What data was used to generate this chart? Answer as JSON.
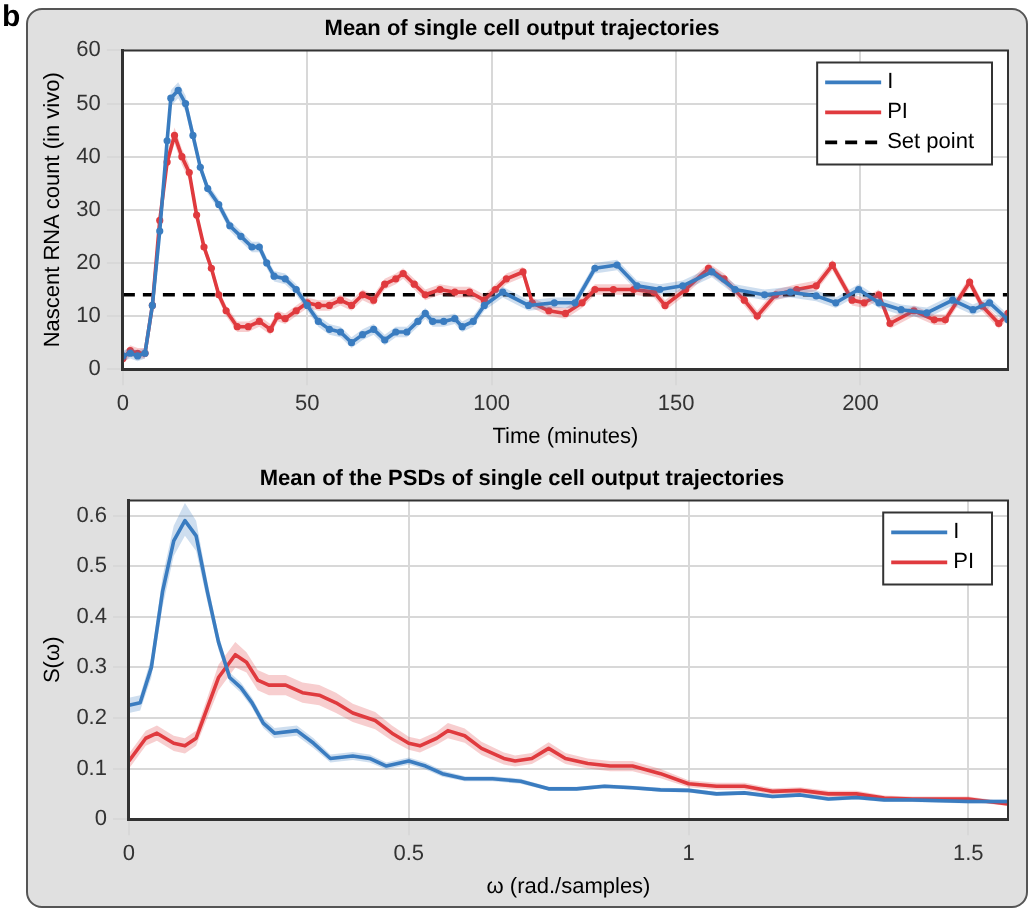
{
  "chart_data": [
    {
      "type": "line",
      "title": "Mean of single cell output trajectories",
      "xlabel": "Time (minutes)",
      "ylabel": "Nascent RNA count (in vivo)",
      "annotations": [
        "b"
      ],
      "xlim": [
        0,
        240
      ],
      "xticks": [
        0,
        50,
        100,
        150,
        200
      ],
      "ylim": [
        0,
        60
      ],
      "yticks": [
        0,
        10,
        20,
        30,
        40,
        50,
        60
      ],
      "grid": true,
      "legend": "top right",
      "marker": "circle",
      "line_style": "solid",
      "ref_lines": [
        {
          "axis": "y",
          "value": 14,
          "label": "Set point",
          "color": "#000000",
          "line_style": "dashed"
        }
      ],
      "series": [
        {
          "name": "I",
          "color": "#3a7dc0",
          "x": [
            0,
            2,
            4,
            6,
            8,
            10,
            12,
            13,
            15,
            17,
            19,
            21,
            23,
            26,
            29,
            32,
            35,
            37,
            39,
            41,
            44,
            47,
            50,
            53,
            56,
            59,
            62,
            65,
            68,
            71,
            74,
            77,
            80,
            82,
            84,
            87,
            90,
            92,
            95,
            98,
            103,
            110,
            117,
            122.6,
            128,
            134,
            139.4,
            145.6,
            151.8,
            159.7,
            166,
            174,
            181,
            188,
            193.3,
            199.5,
            205,
            211,
            218,
            225,
            230.5,
            235,
            240
          ],
          "values": [
            2.5,
            3,
            2.5,
            3,
            12,
            26,
            43,
            51,
            52.5,
            50,
            44,
            38,
            34,
            31,
            27,
            25,
            23,
            23,
            20,
            17.5,
            17,
            15,
            12,
            9,
            7.5,
            7,
            5,
            6.5,
            7.5,
            5.5,
            7,
            7,
            9,
            10.5,
            9,
            9,
            9.5,
            8,
            9,
            12,
            14.5,
            12,
            12.5,
            12.5,
            19,
            19.6,
            15.7,
            15,
            15.7,
            18.3,
            15,
            14,
            14.5,
            13.8,
            12.5,
            15,
            12.5,
            11.2,
            10.6,
            13,
            11.2,
            12.5,
            9.3
          ],
          "lower": [
            1.5,
            2,
            1.5,
            2,
            11,
            25,
            41.5,
            49.5,
            51,
            48.5,
            42.5,
            37,
            33,
            30,
            26,
            24,
            22,
            22,
            19,
            16.5,
            16,
            14,
            11,
            8,
            6.5,
            6,
            4,
            5.5,
            6.5,
            4.5,
            6,
            6,
            8,
            9.5,
            8,
            8,
            8.5,
            7,
            8,
            11,
            13.5,
            11,
            11.5,
            11.5,
            18,
            18.6,
            14.7,
            14,
            14.7,
            17.3,
            14,
            13,
            13.5,
            12.8,
            11.5,
            14,
            11.5,
            10.2,
            9.6,
            12,
            10.2,
            11.5,
            8.3
          ],
          "upper": [
            3.5,
            4,
            3.5,
            4,
            13,
            27,
            44.5,
            52.5,
            54,
            51.5,
            45.5,
            39,
            35,
            32,
            28,
            26,
            24,
            24,
            21,
            18.5,
            18,
            16,
            13,
            10,
            8.5,
            8,
            6,
            7.5,
            8.5,
            6.5,
            8,
            8,
            10,
            11.5,
            10,
            10,
            10.5,
            9,
            10,
            13,
            15.5,
            13,
            13.5,
            13.5,
            20,
            20.6,
            16.7,
            16,
            16.7,
            19.3,
            16,
            15,
            15.5,
            14.8,
            13.5,
            16,
            13.5,
            12.2,
            11.6,
            14,
            12.2,
            13.5,
            10.3
          ]
        },
        {
          "name": "PI",
          "color": "#e03a3e",
          "x": [
            0,
            2,
            4,
            6,
            8,
            10,
            12,
            14,
            16,
            18,
            20,
            22,
            24,
            26,
            28,
            31,
            34,
            37,
            40,
            42,
            44,
            47,
            50,
            53,
            56,
            59,
            62,
            65,
            68,
            71,
            74,
            76,
            79,
            82,
            86,
            90,
            94,
            98,
            101,
            104,
            108.5,
            111,
            115.5,
            120,
            124.5,
            128,
            133,
            138.5,
            144,
            147,
            152.6,
            158.8,
            163,
            168.5,
            172,
            177,
            182.7,
            188,
            192.4,
            197.7,
            201,
            205,
            208,
            214.5,
            220,
            223,
            229.6,
            233,
            237.5,
            240
          ],
          "values": [
            2,
            3.5,
            3,
            3,
            12,
            28,
            39,
            44,
            40,
            37,
            29,
            23,
            19,
            14,
            11,
            8,
            8,
            9,
            7.5,
            10,
            9.5,
            11,
            12.5,
            12,
            12,
            13,
            12,
            14,
            13,
            16,
            17,
            18,
            16,
            14,
            15,
            14.5,
            14.5,
            13,
            15,
            17,
            18.3,
            12.5,
            11,
            10.5,
            12.5,
            15,
            15,
            15,
            14.5,
            12,
            15,
            19,
            17,
            13,
            10,
            14,
            15,
            15.7,
            19.6,
            13,
            12.5,
            14,
            8.6,
            11,
            9.3,
            9.3,
            16.4,
            11.9,
            8.6,
            10.5
          ],
          "lower": [
            1,
            2.5,
            2,
            2,
            11,
            26.5,
            37.5,
            42.5,
            38.5,
            35.5,
            28,
            22,
            18,
            13,
            10,
            7,
            7,
            8,
            6.5,
            9,
            8.5,
            10,
            11.5,
            11,
            11,
            12,
            11,
            13,
            12,
            15,
            16,
            17,
            15,
            13,
            14,
            13.5,
            13.5,
            12,
            14,
            16,
            17.3,
            11.5,
            10,
            9.5,
            11.5,
            14,
            14,
            14,
            13.5,
            11,
            14,
            18,
            16,
            12,
            9,
            13,
            14,
            14.7,
            18.6,
            12,
            11.5,
            13,
            7.6,
            10,
            8.3,
            8.3,
            15.4,
            10.9,
            7.6,
            9.5
          ],
          "upper": [
            3,
            4.5,
            4,
            4,
            13,
            29.5,
            40.5,
            45.5,
            41.5,
            38.5,
            30,
            24,
            20,
            15,
            12,
            9,
            9,
            10,
            8.5,
            11,
            10.5,
            12,
            13.5,
            13,
            13,
            14,
            13,
            15,
            14,
            17,
            18,
            19,
            17,
            15,
            16,
            15.5,
            15.5,
            14,
            16,
            18,
            19.3,
            13.5,
            12,
            11.5,
            13.5,
            16,
            16,
            16,
            15.5,
            13,
            16,
            20,
            18,
            14,
            11,
            15,
            16,
            16.7,
            20.6,
            14,
            13.5,
            15,
            9.6,
            12,
            10.3,
            10.3,
            17.4,
            12.9,
            9.6,
            11.5
          ]
        }
      ]
    },
    {
      "type": "line",
      "title": "Mean of the PSDs of single cell output trajectories",
      "xlabel": "ω (rad./samples)",
      "ylabel": "S(ω)",
      "xlim": [
        0,
        1.571
      ],
      "xticks": [
        0,
        0.5,
        1,
        1.5
      ],
      "ylim": [
        0,
        0.63
      ],
      "yticks": [
        0,
        0.1,
        0.2,
        0.3,
        0.4,
        0.5,
        0.6
      ],
      "grid": true,
      "legend": "top right",
      "line_style": "solid",
      "series": [
        {
          "name": "I",
          "color": "#3a7dc0",
          "x": [
            0,
            0.02,
            0.04,
            0.06,
            0.08,
            0.1,
            0.12,
            0.14,
            0.16,
            0.18,
            0.2,
            0.22,
            0.24,
            0.26,
            0.3,
            0.33,
            0.36,
            0.4,
            0.43,
            0.46,
            0.5,
            0.53,
            0.56,
            0.6,
            0.65,
            0.7,
            0.75,
            0.8,
            0.85,
            0.9,
            0.95,
            1,
            1.05,
            1.1,
            1.15,
            1.2,
            1.25,
            1.3,
            1.35,
            1.4,
            1.5,
            1.571
          ],
          "values": [
            0.225,
            0.23,
            0.3,
            0.45,
            0.55,
            0.59,
            0.56,
            0.45,
            0.35,
            0.28,
            0.26,
            0.23,
            0.19,
            0.17,
            0.175,
            0.15,
            0.12,
            0.125,
            0.12,
            0.105,
            0.115,
            0.105,
            0.09,
            0.08,
            0.08,
            0.075,
            0.06,
            0.06,
            0.065,
            0.062,
            0.058,
            0.057,
            0.05,
            0.052,
            0.045,
            0.048,
            0.04,
            0.043,
            0.038,
            0.038,
            0.035,
            0.035
          ],
          "lower": [
            0.21,
            0.215,
            0.28,
            0.42,
            0.52,
            0.56,
            0.53,
            0.43,
            0.335,
            0.27,
            0.25,
            0.22,
            0.18,
            0.16,
            0.165,
            0.14,
            0.112,
            0.117,
            0.112,
            0.098,
            0.108,
            0.098,
            0.084,
            0.075,
            0.075,
            0.07,
            0.056,
            0.056,
            0.061,
            0.058,
            0.054,
            0.053,
            0.046,
            0.048,
            0.041,
            0.044,
            0.036,
            0.039,
            0.034,
            0.034,
            0.031,
            0.031
          ],
          "upper": [
            0.24,
            0.245,
            0.32,
            0.48,
            0.58,
            0.625,
            0.59,
            0.47,
            0.365,
            0.29,
            0.27,
            0.24,
            0.2,
            0.18,
            0.185,
            0.16,
            0.128,
            0.133,
            0.128,
            0.112,
            0.122,
            0.112,
            0.096,
            0.085,
            0.085,
            0.08,
            0.064,
            0.064,
            0.069,
            0.066,
            0.062,
            0.061,
            0.054,
            0.056,
            0.049,
            0.052,
            0.044,
            0.047,
            0.042,
            0.042,
            0.039,
            0.039
          ]
        },
        {
          "name": "PI",
          "color": "#e03a3e",
          "x": [
            0,
            0.03,
            0.05,
            0.08,
            0.1,
            0.12,
            0.14,
            0.16,
            0.19,
            0.21,
            0.23,
            0.25,
            0.28,
            0.31,
            0.34,
            0.37,
            0.4,
            0.44,
            0.47,
            0.5,
            0.52,
            0.55,
            0.57,
            0.6,
            0.63,
            0.67,
            0.69,
            0.72,
            0.75,
            0.78,
            0.82,
            0.86,
            0.9,
            0.95,
            1,
            1.05,
            1.1,
            1.15,
            1.2,
            1.25,
            1.3,
            1.35,
            1.4,
            1.5,
            1.571
          ],
          "values": [
            0.115,
            0.16,
            0.17,
            0.15,
            0.145,
            0.16,
            0.22,
            0.28,
            0.325,
            0.31,
            0.275,
            0.265,
            0.265,
            0.25,
            0.245,
            0.23,
            0.21,
            0.195,
            0.17,
            0.15,
            0.145,
            0.16,
            0.175,
            0.165,
            0.14,
            0.12,
            0.115,
            0.12,
            0.14,
            0.12,
            0.11,
            0.105,
            0.105,
            0.09,
            0.07,
            0.065,
            0.065,
            0.055,
            0.057,
            0.05,
            0.05,
            0.042,
            0.04,
            0.04,
            0.03
          ],
          "lower": [
            0.1,
            0.145,
            0.155,
            0.135,
            0.13,
            0.145,
            0.2,
            0.255,
            0.3,
            0.29,
            0.255,
            0.245,
            0.245,
            0.23,
            0.225,
            0.21,
            0.192,
            0.178,
            0.155,
            0.137,
            0.132,
            0.147,
            0.16,
            0.151,
            0.127,
            0.108,
            0.104,
            0.109,
            0.128,
            0.109,
            0.1,
            0.095,
            0.095,
            0.081,
            0.063,
            0.058,
            0.058,
            0.049,
            0.051,
            0.044,
            0.044,
            0.037,
            0.035,
            0.035,
            0.026
          ],
          "upper": [
            0.13,
            0.175,
            0.185,
            0.165,
            0.16,
            0.175,
            0.24,
            0.305,
            0.35,
            0.33,
            0.295,
            0.285,
            0.285,
            0.27,
            0.265,
            0.25,
            0.228,
            0.212,
            0.185,
            0.163,
            0.158,
            0.173,
            0.19,
            0.179,
            0.153,
            0.132,
            0.126,
            0.131,
            0.152,
            0.131,
            0.12,
            0.115,
            0.115,
            0.099,
            0.077,
            0.072,
            0.072,
            0.061,
            0.063,
            0.056,
            0.056,
            0.047,
            0.045,
            0.045,
            0.034
          ]
        }
      ]
    }
  ]
}
